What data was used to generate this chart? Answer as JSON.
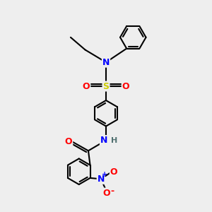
{
  "background_color": "#eeeeee",
  "atom_colors": {
    "C": "#000000",
    "N": "#0000ff",
    "O": "#ff0000",
    "S": "#cccc00",
    "H": "#507070"
  },
  "bond_color": "#000000",
  "bond_width": 1.5,
  "figsize": [
    3.0,
    3.0
  ],
  "dpi": 100
}
